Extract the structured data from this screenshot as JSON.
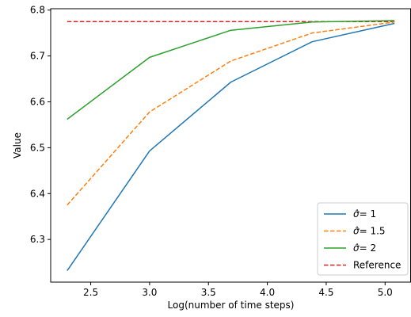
{
  "chart_data": {
    "type": "line",
    "title": "",
    "xlabel": "Log(number of time steps)",
    "ylabel": "Value",
    "xlim": [
      2.16,
      5.22
    ],
    "ylim": [
      6.207,
      6.803
    ],
    "xticks": [
      2.5,
      3.0,
      3.5,
      4.0,
      4.5,
      5.0
    ],
    "xtick_labels": [
      "2.5",
      "3.0",
      "3.5",
      "4.0",
      "4.5",
      "5.0"
    ],
    "yticks": [
      6.3,
      6.4,
      6.5,
      6.6,
      6.7,
      6.8
    ],
    "ytick_labels": [
      "6.3",
      "6.4",
      "6.5",
      "6.6",
      "6.7",
      "6.8"
    ],
    "grid": false,
    "legend_position": "lower-right",
    "x": [
      2.3,
      3.0,
      3.69,
      4.38,
      5.08
    ],
    "series": [
      {
        "name_prefix": "σ̂",
        "name_suffix": "= 1",
        "values": [
          6.232,
          6.493,
          6.643,
          6.731,
          6.771
        ],
        "color": "#1f77b4",
        "style": "solid"
      },
      {
        "name_prefix": "σ̂",
        "name_suffix": "= 1.5",
        "values": [
          6.375,
          6.578,
          6.689,
          6.75,
          6.774
        ],
        "color": "#ff7f0e",
        "style": "dashed"
      },
      {
        "name_prefix": "σ̂",
        "name_suffix": "= 2",
        "values": [
          6.562,
          6.697,
          6.756,
          6.774,
          6.777
        ],
        "color": "#2ca02c",
        "style": "solid"
      }
    ],
    "reference": {
      "name": "Reference",
      "value": 6.775,
      "color": "#d62728",
      "style": "dashed"
    }
  }
}
